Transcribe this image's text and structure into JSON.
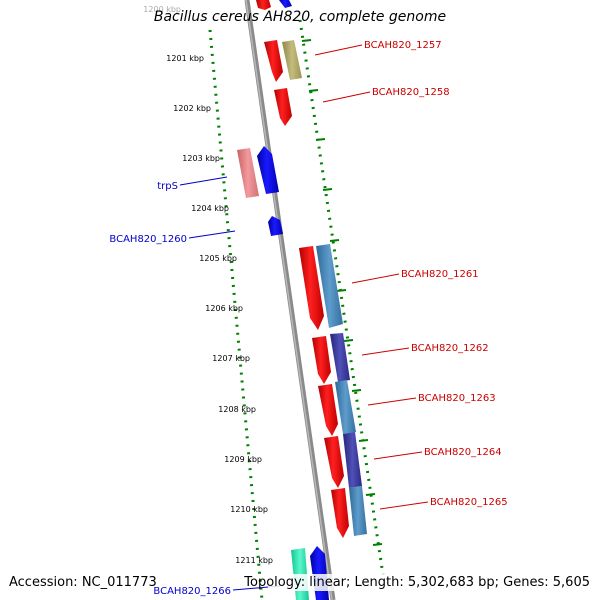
{
  "title": "Bacillus cereus AH820, complete genome",
  "accession": "Accession: NC_011773",
  "summary": "Topology: linear; Length: 5,302,683 bp; Genes: 5,605",
  "ticks": [
    "1200 kbp",
    "1201 kbp",
    "1202 kbp",
    "1203 kbp",
    "1204 kbp",
    "1205 kbp",
    "1206 kbp",
    "1207 kbp",
    "1208 kbp",
    "1209 kbp",
    "1210 kbp",
    "1211 kbp"
  ],
  "colors": {
    "red": "#ff0000",
    "blue": "#0000ff",
    "pink": "#e8868a",
    "olive": "#b5ad6b",
    "steel": "#4a87b8",
    "indigo": "#3c3c9c",
    "teal": "#22e8b0",
    "tick_green": "#008000",
    "label_red": "#cc0000",
    "label_blue": "#0000cc",
    "backbone": "#8a8a8a"
  },
  "labels_right": [
    {
      "name": "BCAH820_1257"
    },
    {
      "name": "BCAH820_1258"
    },
    {
      "name": "BCAH820_1261"
    },
    {
      "name": "BCAH820_1262"
    },
    {
      "name": "BCAH820_1263"
    },
    {
      "name": "BCAH820_1264"
    },
    {
      "name": "BCAH820_1265"
    }
  ],
  "labels_left": [
    {
      "name": "trpS"
    },
    {
      "name": "BCAH820_1260"
    },
    {
      "name": "BCAH820_1266"
    }
  ]
}
